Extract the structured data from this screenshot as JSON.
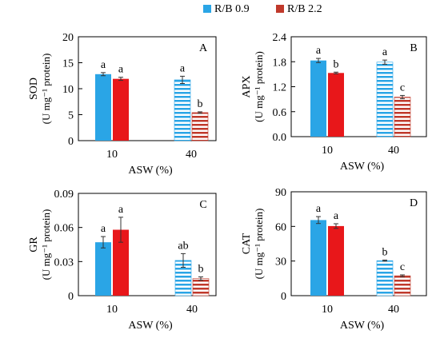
{
  "legend": {
    "items": [
      {
        "label": "R/B 0.9",
        "color": "#2aa5e6",
        "pattern": "solid"
      },
      {
        "label": "R/B 2.2",
        "color": "#e8171a",
        "pattern": "solid"
      }
    ]
  },
  "chart_data": [
    {
      "panel": "A",
      "type": "bar",
      "ylabel": "SOD",
      "ylabel_unit": "(U mg⁻¹ protein)",
      "xlabel": "ASW (%)",
      "categories": [
        "10",
        "40"
      ],
      "ylim": [
        0,
        20
      ],
      "yticks": [
        "0",
        "5",
        "10",
        "15",
        "20"
      ],
      "series": [
        {
          "name": "R/B 0.9",
          "values": [
            12.8,
            11.7
          ],
          "errors": [
            0.3,
            0.7
          ],
          "letters": [
            "a",
            "a"
          ]
        },
        {
          "name": "R/B 2.2",
          "values": [
            11.9,
            5.4
          ],
          "errors": [
            0.3,
            0.15
          ],
          "letters": [
            "a",
            "b"
          ]
        }
      ]
    },
    {
      "panel": "B",
      "type": "bar",
      "ylabel": "APX",
      "ylabel_unit": "(U mg⁻¹ protein)",
      "xlabel": "ASW (%)",
      "categories": [
        "10",
        "40"
      ],
      "ylim": [
        0,
        2.4
      ],
      "yticks": [
        "0.0",
        "0.6",
        "1.2",
        "1.8",
        "2.4"
      ],
      "series": [
        {
          "name": "R/B 0.9",
          "values": [
            1.83,
            1.79
          ],
          "errors": [
            0.05,
            0.05
          ],
          "letters": [
            "a",
            "a"
          ]
        },
        {
          "name": "R/B 2.2",
          "values": [
            1.53,
            0.95
          ],
          "errors": [
            0.02,
            0.04
          ],
          "letters": [
            "b",
            "c"
          ]
        }
      ]
    },
    {
      "panel": "C",
      "type": "bar",
      "ylabel": "GR",
      "ylabel_unit": "(U mg⁻¹ protein)",
      "xlabel": "ASW (%)",
      "categories": [
        "10",
        "40"
      ],
      "ylim": [
        0,
        0.09
      ],
      "yticks": [
        "0",
        "0.03",
        "0.06",
        "0.09"
      ],
      "series": [
        {
          "name": "R/B 0.9",
          "values": [
            0.047,
            0.031
          ],
          "errors": [
            0.005,
            0.006
          ],
          "letters": [
            "a",
            "ab"
          ]
        },
        {
          "name": "R/B 2.2",
          "values": [
            0.058,
            0.015
          ],
          "errors": [
            0.011,
            0.0015
          ],
          "letters": [
            "a",
            "b"
          ]
        }
      ]
    },
    {
      "panel": "D",
      "type": "bar",
      "ylabel": "CAT",
      "ylabel_unit": "(U mg⁻¹ protein)",
      "xlabel": "ASW (%)",
      "categories": [
        "10",
        "40"
      ],
      "ylim": [
        0,
        90
      ],
      "yticks": [
        "0",
        "30",
        "60",
        "90"
      ],
      "series": [
        {
          "name": "R/B 0.9",
          "values": [
            65.5,
            30.3
          ],
          "errors": [
            3.0,
            0.5
          ],
          "letters": [
            "a",
            "b"
          ]
        },
        {
          "name": "R/B 2.2",
          "values": [
            60.3,
            17.2
          ],
          "errors": [
            2.0,
            0.8
          ],
          "letters": [
            "a",
            "c"
          ]
        }
      ]
    }
  ]
}
